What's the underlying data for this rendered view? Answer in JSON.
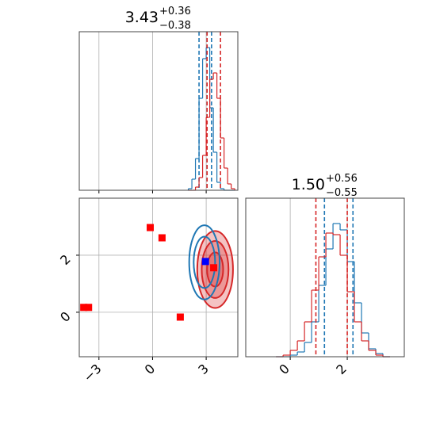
{
  "chart_data": {
    "type": "corner",
    "params": [
      {
        "title": {
          "value": "3.43",
          "upper": "+0.36",
          "lower": "−0.38"
        },
        "lim": [
          -4.1,
          4.77
        ],
        "ticks": [
          {
            "value": -3,
            "label": "−3"
          },
          0,
          3
        ],
        "hist": {
          "bins": [
            2.0,
            2.2,
            2.4,
            2.6,
            2.8,
            3.0,
            3.2,
            3.4,
            3.6,
            3.8,
            4.0,
            4.2,
            4.4,
            4.6
          ],
          "ylim": [
            0,
            1
          ],
          "series": [
            {
              "color": "#1f77b4",
              "values": [
                0.01,
                0.07,
                0.2,
                0.58,
                0.83,
                0.9,
                0.52,
                0.24,
                0.05,
                0.01,
                0,
                0,
                0
              ],
              "quantiles": [
                2.6,
                3.3
              ]
            },
            {
              "color": "#d62728",
              "values": [
                0,
                0,
                0.02,
                0.08,
                0.22,
                0.46,
                0.7,
                0.74,
                0.58,
                0.33,
                0.14,
                0.04,
                0.01
              ],
              "quantiles": [
                3.05,
                3.8
              ]
            }
          ]
        }
      },
      {
        "title": {
          "value": "1.50",
          "upper": "+0.56",
          "lower": "−0.55"
        },
        "lim": [
          -1.56,
          4.0
        ],
        "ticks": [
          0,
          2
        ],
        "hist": {
          "bins": [
            -0.5,
            -0.25,
            0,
            0.25,
            0.5,
            0.75,
            1.0,
            1.25,
            1.5,
            1.75,
            2.0,
            2.25,
            2.5,
            2.75,
            3.0,
            3.25,
            3.5
          ],
          "ylim": [
            0,
            1
          ],
          "series": [
            {
              "color": "#1f77b4",
              "values": [
                0,
                0,
                0.01,
                0.03,
                0.09,
                0.22,
                0.45,
                0.68,
                0.84,
                0.8,
                0.6,
                0.34,
                0.15,
                0.05,
                0.02,
                0
              ],
              "quantiles": [
                1.2,
                2.2
              ]
            },
            {
              "color": "#d62728",
              "values": [
                0,
                0.01,
                0.04,
                0.1,
                0.22,
                0.42,
                0.63,
                0.78,
                0.77,
                0.64,
                0.41,
                0.22,
                0.1,
                0.04,
                0.01,
                0
              ],
              "quantiles": [
                0.9,
                2.0
              ]
            }
          ]
        }
      }
    ],
    "contours": [
      {
        "color": "#d62728",
        "fill": true,
        "center": [
          3.5,
          1.5
        ],
        "levels": [
          [
            1.0,
            1.35
          ],
          [
            0.75,
            1.0
          ],
          [
            0.45,
            0.6
          ]
        ]
      },
      {
        "color": "#1f77b4",
        "fill": false,
        "center": [
          2.9,
          1.75
        ],
        "levels": [
          [
            0.85,
            1.3
          ],
          [
            0.6,
            0.9
          ]
        ]
      }
    ],
    "scatter": [
      {
        "color": "#ff0000",
        "x": [
          -3.85,
          -3.58,
          -0.13,
          0.53,
          1.55,
          3.42
        ],
        "y": [
          0.17,
          0.17,
          2.97,
          2.61,
          -0.17,
          1.56
        ]
      },
      {
        "color": "#0000ff",
        "x": [
          2.96
        ],
        "y": [
          1.78
        ]
      }
    ]
  }
}
